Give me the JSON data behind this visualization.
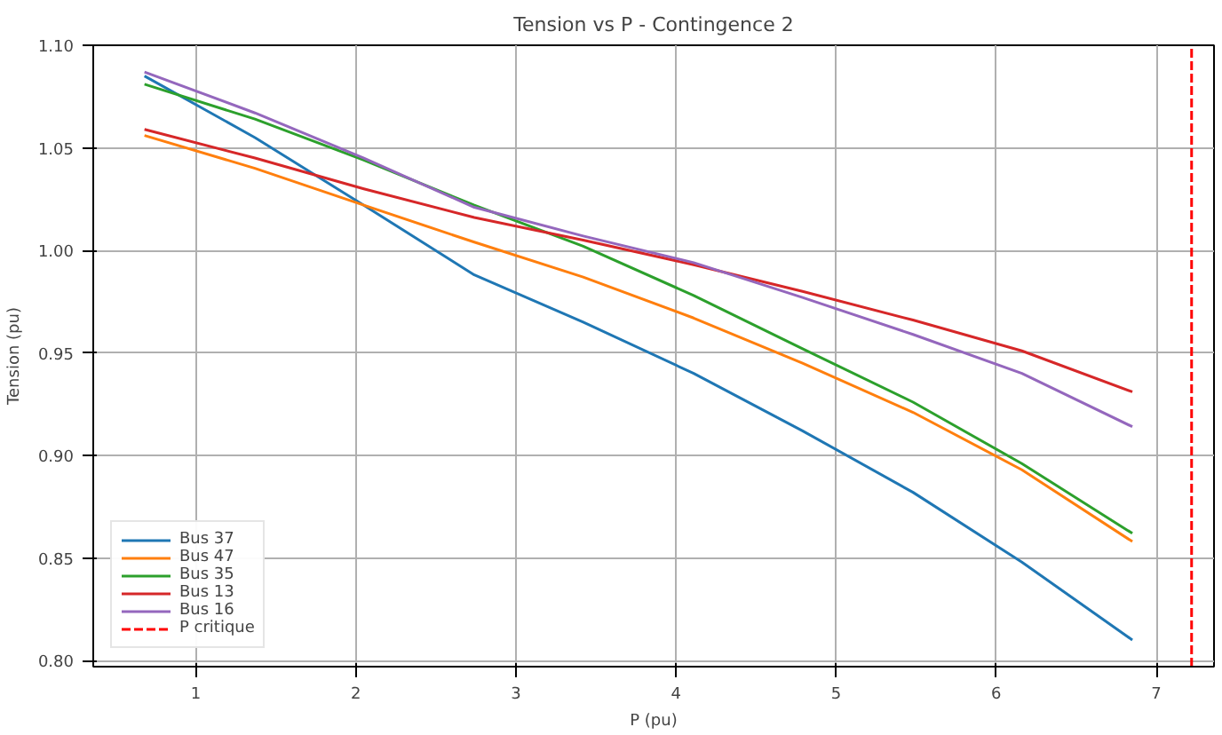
{
  "chart_data": {
    "type": "line",
    "title": "Tension vs P - Contingence 2",
    "xlabel": "P (pu)",
    "ylabel": "Tension (pu)",
    "x": [
      0.68,
      1.37,
      2.05,
      2.74,
      3.42,
      4.11,
      4.79,
      5.48,
      6.16,
      6.85
    ],
    "series": [
      {
        "name": "Bus 37",
        "color": "#1f77b4",
        "values": [
          1.085,
          1.055,
          1.022,
          0.988,
          0.965,
          0.94,
          0.912,
          0.882,
          0.848,
          0.81
        ]
      },
      {
        "name": "Bus 47",
        "color": "#ff7f0e",
        "values": [
          1.056,
          1.04,
          1.022,
          1.004,
          0.987,
          0.967,
          0.945,
          0.921,
          0.893,
          0.858
        ]
      },
      {
        "name": "Bus 35",
        "color": "#2ca02c",
        "values": [
          1.081,
          1.064,
          1.044,
          1.022,
          1.002,
          0.978,
          0.952,
          0.926,
          0.896,
          0.862
        ]
      },
      {
        "name": "Bus 13",
        "color": "#d62728",
        "values": [
          1.059,
          1.045,
          1.03,
          1.016,
          1.005,
          0.993,
          0.98,
          0.966,
          0.951,
          0.931
        ]
      },
      {
        "name": "Bus 16",
        "color": "#9467bd",
        "values": [
          1.087,
          1.067,
          1.045,
          1.021,
          1.007,
          0.994,
          0.977,
          0.959,
          0.94,
          0.914
        ]
      },
      {
        "name": "P critique",
        "color": "#ff0000",
        "type": "line",
        "line_style": "dashed",
        "x": [
          7.22,
          7.22
        ],
        "values": [
          0.797,
          1.1
        ]
      }
    ],
    "xlim": [
      0.36,
      7.36
    ],
    "ylim": [
      0.797,
      1.1
    ],
    "xticks": [
      1,
      2,
      3,
      4,
      5,
      6,
      7
    ],
    "yticks": [
      {
        "value": 0.8,
        "label": "0.80"
      },
      0.85,
      {
        "value": 0.9,
        "label": "0.90"
      },
      0.95,
      {
        "value": 1.0,
        "label": "1.00"
      },
      1.05,
      {
        "value": 1.1,
        "label": "1.10"
      }
    ],
    "grid": true,
    "legend": "bottom left",
    "line_style": "solid",
    "marker": "none"
  }
}
